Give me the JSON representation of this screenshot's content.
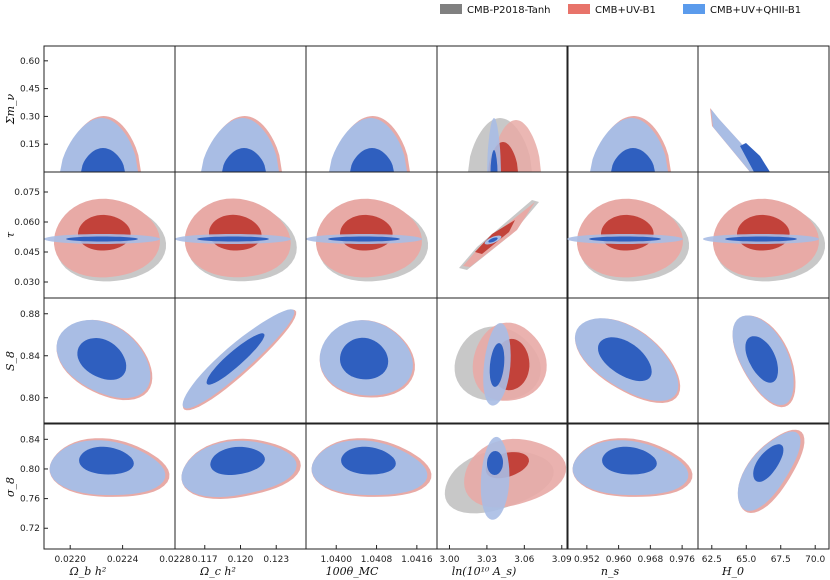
{
  "chart_data": {
    "type": "triangle-contour",
    "title": "",
    "legend": {
      "placement": "top-right",
      "entries": [
        {
          "name": "CMB-P2018-Tanh",
          "color": "#808080"
        },
        {
          "name": "CMB+UV-B1",
          "color": "#e8736a"
        },
        {
          "name": "CMB+UV+QHII-B1",
          "color": "#5b9bec"
        }
      ]
    },
    "colors": {
      "grey_outer": "#c8c8c8",
      "grey_inner": "#9a9a9a",
      "red_outer": "#e8aaa6",
      "red_inner": "#c2423a",
      "blue_outer": "#a9bde4",
      "blue_inner": "#2f5fbf"
    },
    "columns": [
      {
        "key": "ombh2",
        "label": "Ω_b h²",
        "range": [
          0.0218,
          0.0228
        ],
        "ticks": [
          "0.0220",
          "0.0224",
          "0.0228"
        ],
        "tick_values": [
          0.022,
          0.0224,
          0.0228
        ]
      },
      {
        "key": "omch2",
        "label": "Ω_c h²",
        "range": [
          0.1145,
          0.1255
        ],
        "ticks": [
          "0.117",
          "0.120",
          "0.123"
        ],
        "tick_values": [
          0.117,
          0.12,
          0.123
        ]
      },
      {
        "key": "theta",
        "label": "100θ_MC",
        "range": [
          1.0394,
          1.042
        ],
        "ticks": [
          "1.0400",
          "1.0408",
          "1.0416"
        ],
        "tick_values": [
          1.04,
          1.0408,
          1.0416
        ]
      },
      {
        "key": "logA",
        "label": "ln(10¹⁰ A_s)",
        "range": [
          2.99,
          3.095
        ],
        "ticks": [
          "3.00",
          "3.03",
          "3.06",
          "3.09"
        ],
        "tick_values": [
          3.0,
          3.03,
          3.06,
          3.09
        ]
      },
      {
        "key": "ns",
        "label": "n_s",
        "range": [
          0.947,
          0.98
        ],
        "ticks": [
          "0.952",
          "0.960",
          "0.968",
          "0.976"
        ],
        "tick_values": [
          0.952,
          0.96,
          0.968,
          0.976
        ]
      },
      {
        "key": "H0",
        "label": "H_0",
        "range": [
          61.5,
          71.0
        ],
        "ticks": [
          "62.5",
          "65.0",
          "67.5",
          "70.0"
        ],
        "tick_values": [
          62.5,
          65.0,
          67.5,
          70.0
        ]
      }
    ],
    "rows": [
      {
        "key": "mnu",
        "label": "Σm_ν",
        "range": [
          0.0,
          0.68
        ],
        "ticks": [
          "0.15",
          "0.30",
          "0.45",
          "0.60"
        ],
        "tick_values": [
          0.15,
          0.3,
          0.45,
          0.6
        ]
      },
      {
        "key": "tau",
        "label": "τ",
        "range": [
          0.022,
          0.085
        ],
        "ticks": [
          "0.030",
          "0.045",
          "0.060",
          "0.075"
        ],
        "tick_values": [
          0.03,
          0.045,
          0.06,
          0.075
        ]
      },
      {
        "key": "S8",
        "label": "S_8",
        "range": [
          0.775,
          0.895
        ],
        "ticks": [
          "0.80",
          "0.84",
          "0.88"
        ],
        "tick_values": [
          0.8,
          0.84,
          0.88
        ]
      },
      {
        "key": "sigma8",
        "label": "σ_8",
        "range": [
          0.692,
          0.862
        ],
        "ticks": [
          "0.72",
          "0.76",
          "0.80",
          "0.84"
        ],
        "tick_values": [
          0.72,
          0.76,
          0.8,
          0.84
        ]
      }
    ],
    "contours": {
      "mnu_generic": {
        "outer_68pct_upper": [
          [
            -1.0,
            0.0
          ],
          [
            -0.85,
            0.22
          ],
          [
            -0.3,
            0.32
          ],
          [
            0.35,
            0.3
          ],
          [
            0.95,
            0.1
          ],
          [
            1.1,
            0.0
          ]
        ],
        "inner_95pct_upper": [
          [
            -0.55,
            0.0
          ],
          [
            -0.2,
            0.13
          ],
          [
            0.3,
            0.13
          ],
          [
            0.65,
            0.0
          ]
        ]
      },
      "mnu_H0_blue": {
        "outer_upper": [
          [
            62.7,
            0.33
          ],
          [
            64.0,
            0.24
          ],
          [
            66.8,
            0.0
          ]
        ],
        "inner_upper": [
          [
            65.6,
            0.12
          ],
          [
            66.8,
            0.06
          ],
          [
            67.8,
            0.0
          ]
        ]
      },
      "mnu_logA": {
        "red_outer": [
          3.035,
          3.082
        ],
        "grey_outer": [
          3.015,
          3.075
        ],
        "blue_outer": [
          3.021,
          3.036
        ],
        "red_inner": [
          3.04,
          3.06
        ],
        "blue_inner": [
          3.025,
          3.031
        ],
        "peak": 0.32
      },
      "tau_rows": {
        "red_outer_sigma": [
          0.8,
          0.0115
        ],
        "red_inner_sigma": [
          0.45,
          0.0055
        ],
        "center_tau": 0.054,
        "blue_band": {
          "center_tau": 0.052,
          "half_width": 0.0012
        }
      },
      "tau_logA": {
        "grey": [
          [
            3.0,
            0.037
          ],
          [
            3.025,
            0.05
          ],
          [
            3.06,
            0.064
          ],
          [
            3.085,
            0.076
          ],
          [
            3.09,
            0.074
          ],
          [
            3.065,
            0.06
          ],
          [
            3.035,
            0.047
          ],
          [
            3.005,
            0.035
          ]
        ],
        "red_inner": [
          [
            3.025,
            0.046
          ],
          [
            3.052,
            0.058
          ],
          [
            3.063,
            0.064
          ],
          [
            3.06,
            0.058
          ],
          [
            3.035,
            0.047
          ]
        ],
        "blue": [
          [
            3.028,
            0.053
          ],
          [
            3.035,
            0.054
          ],
          [
            3.037,
            0.051
          ],
          [
            3.03,
            0.05
          ]
        ]
      },
      "S8_examples": {
        "omch2_vs_S8": {
          "slope": "positive",
          "outer_span": [
            0.1165,
            0.1245
          ],
          "S8_span": [
            0.795,
            0.877
          ]
        },
        "ombh2_vs_S8": {
          "slope": "negative"
        },
        "H0_vs_S8": {
          "slope": "negative",
          "H0_center": 66.8,
          "S8_center": 0.835
        }
      },
      "sigma8_examples": {
        "center_sigma8": 0.815,
        "H0_vs_sigma8": {
          "slope": "positive"
        },
        "logA_vs_sigma8": {
          "red_spans_to": 3.085,
          "blue_vertical_at": 3.035
        }
      }
    }
  }
}
